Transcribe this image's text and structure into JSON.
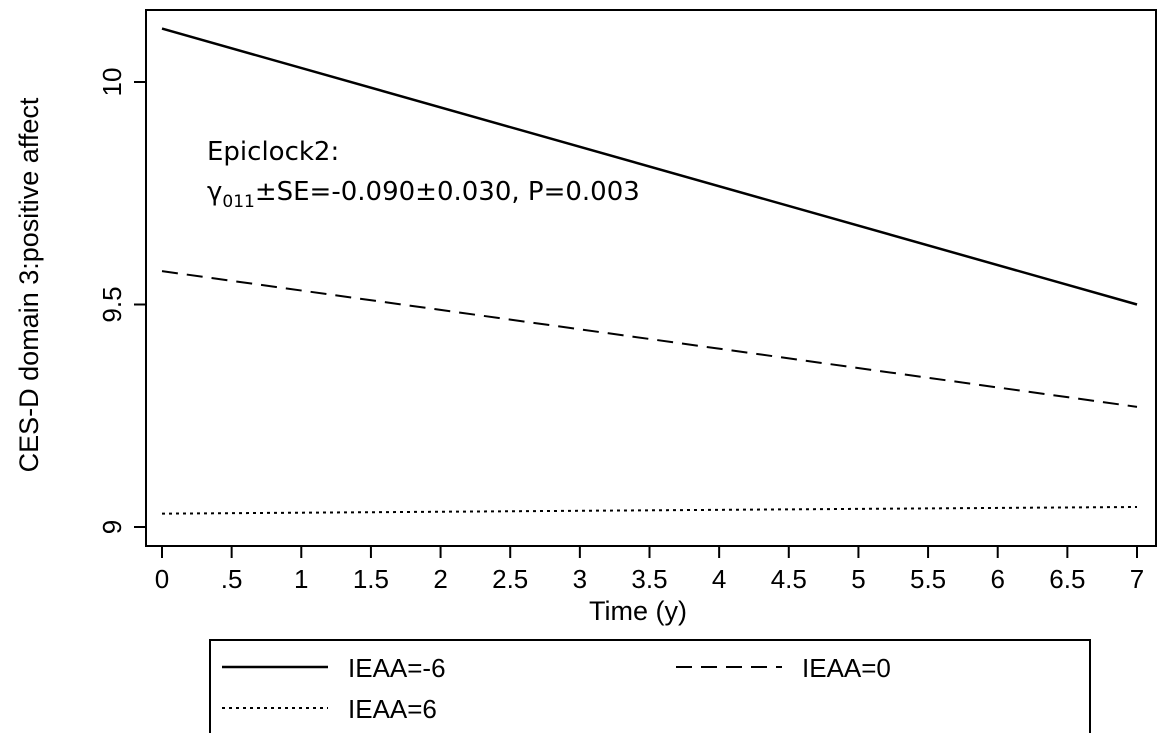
{
  "chart_data": {
    "type": "line",
    "xlabel": "Time (y)",
    "ylabel": "CES-D domain 3:positive affect",
    "xlim": [
      0,
      7
    ],
    "ylim": [
      9.0,
      10.0
    ],
    "xticks": [
      0,
      0.5,
      1,
      1.5,
      2,
      2.5,
      3,
      3.5,
      4,
      4.5,
      5,
      5.5,
      6,
      6.5,
      7
    ],
    "xtick_labels": [
      "0",
      ".5",
      "1",
      "1.5",
      "2",
      "2.5",
      "3",
      "3.5",
      "4",
      "4.5",
      "5",
      "5.5",
      "6",
      "6.5",
      "7"
    ],
    "yticks": [
      9,
      9.5,
      10
    ],
    "ytick_labels": [
      "9",
      "9.5",
      "10"
    ],
    "grid": false,
    "legend_position": "bottom",
    "series": [
      {
        "name": "IEAA=-6",
        "line_style": "solid",
        "x": [
          0,
          7
        ],
        "y": [
          10.12,
          9.5
        ]
      },
      {
        "name": "IEAA=0",
        "line_style": "dashed",
        "x": [
          0,
          7
        ],
        "y": [
          9.575,
          9.27
        ]
      },
      {
        "name": "IEAA=6",
        "line_style": "dotted",
        "x": [
          0,
          7
        ],
        "y": [
          9.03,
          9.045
        ]
      }
    ],
    "annotation": {
      "line1": "Epiclock2:",
      "gamma_symbol": "γ",
      "gamma_subscript": "011",
      "stat_text": "±SE=-0.090±0.030, P=0.003"
    }
  }
}
